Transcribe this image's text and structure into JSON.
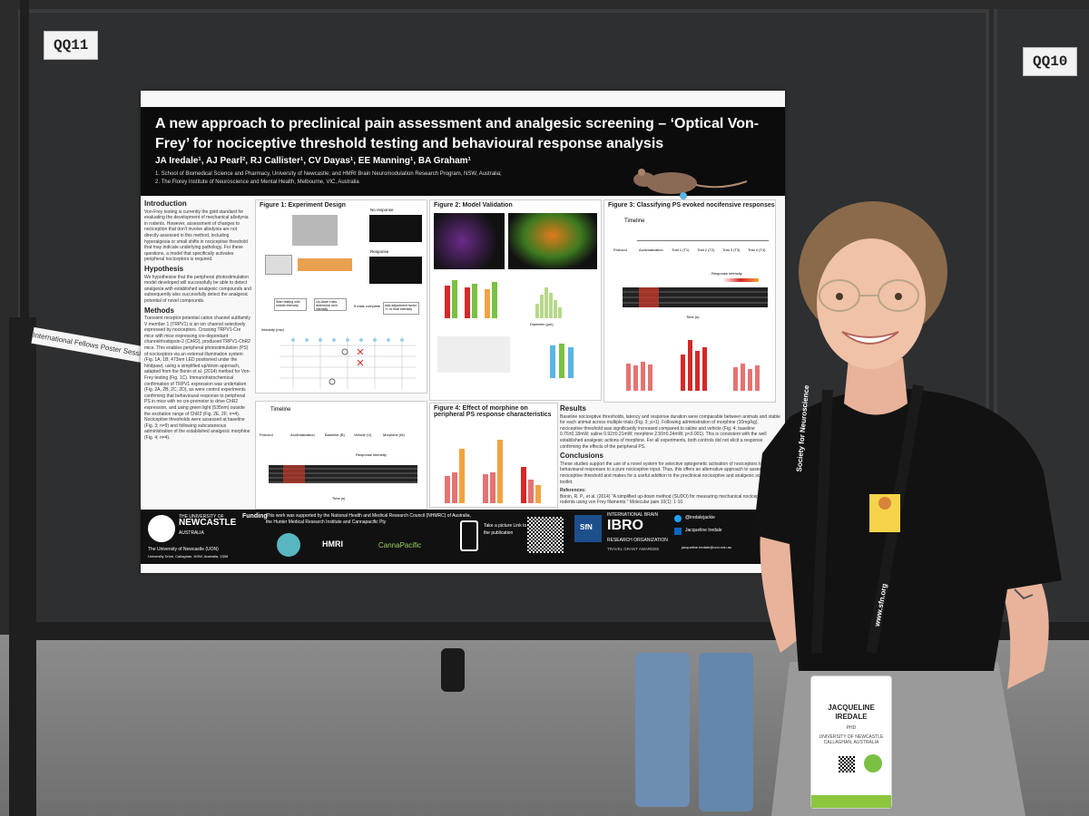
{
  "booth": {
    "left_tag": "QQ11",
    "right_tag": "QQ10",
    "strip_label": "International Fellows Poster Session"
  },
  "poster": {
    "title": "A new approach to preclinical pain assessment and analgesic screening – ‘Optical Von-Frey’ for nociceptive threshold testing and behavioural response analysis",
    "authors": "JA Iredale¹, AJ Pearl², RJ Callister¹, CV Dayas¹, EE Manning¹, BA Graham¹",
    "affiliation_1": "1. School of Biomedical Science and Pharmacy, University of Newcastle; and HMRI Brain Neuromodulation Research Program, NSW, Australia;",
    "affiliation_2": "2. The Florey Institute of Neuroscience and Mental Health, Melbourne, VIC, Australia",
    "sections": {
      "intro_h": "Introduction",
      "intro_text": "Von-Frey testing is currently the gold standard for evaluating the development of mechanical allodynia in rodents. However, assessment of changes to nociception that don't involve allodynia are not directly assessed in this method, including hyperalgesia or small shifts in nociceptive threshold that may indicate underlying pathology. For these questions, a model that specifically activates peripheral nociceptors is required.",
      "hyp_h": "Hypothesis",
      "hyp_text": "We hypothesise that the peripheral photostimulation model developed will successfully be able to detect analgesia with established analgesic compounds and subsequently also successfully detect the analgesic potential of novel compounds.",
      "methods_h": "Methods",
      "methods_text": "Transient receptor potential cation channel subfamily V member 1 (TRPV1) is an ion channel selectively expressed by nociceptors. Crossing TRPV1-Cre mice with mice expressing cre-dependant channelrhodopsin-2 (ChR2), produced TRPV1-ChR2 mice. This enables peripheral photostimulation (PS) of nociceptors via an external illumination system (Fig. 1A, 1B; 473nm LED positioned under the hindpaw), using a simplified up/down approach, adapted from the Bonin et al. (2014) method for Von-Frey testing (Fig. 1C). Immunohistochemical confirmation of TRPV1 expression was undertaken (Fig. 2A, 2B, 2C, 2D), as were control experiments confirming that behavioural response to peripheral PS in mice with no cre-promotor to drive ChR2 expression, and using green light (535nm) outside the excitation range of ChR2 (Fig. 2E, 2F; n=4). Nociceptive thresholds were assessed at baseline (Fig. 3; n=9) and following subcutaneous administration of the established analgesic morphine (Fig. 4; n=4).",
      "results_h": "Results",
      "results_text": "Baseline nociceptive thresholds, latency and response duration were comparable between animals and stable for each animal across multiple trials (Fig. 3; p>1). Following administration of morphine (10mg/kg), nociceptive threshold was significantly increased compared to saline and vehicle (Fig. 4; baseline 0.76±0.18mW; saline 0.92±0.21mW; morphine 2.50±0.24mW; p<0.001). This is consistent with the well established analgesic actions of morphine. For all experiments, both controls did not elicit a response confirming the effects of the peripheral PS.",
      "concl_h": "Conclusions",
      "concl_text": "These studies support the use of a novel system for selective optogenetic activation of nociceptors to monitor behavioural responses to a pure nociceptive input. Thus, this offers an alternative approach to assess nociceptive threshold and makes for a useful addition to the preclinical nociceptive and analgesic screening toolkit.",
      "refs_h": "References:",
      "refs_text": "Bonin, R. P., et al. (2014) \"A simplified up-down method (SUDO) for measuring mechanical nociception in rodents using von Frey filaments.\" Molecular pain 10(1): 1-10."
    },
    "figures": {
      "fig1": "Figure 1: Experiment Design",
      "fig2": "Figure 2: Model Validation",
      "fig3": "Figure 3: Classifying PS evoked nocifensive responses",
      "fig4": "Figure 4: Effect of morphine on peripheral PS response characteristics",
      "timeline": "Timeline",
      "protocol": "Protocol",
      "acclimatization": "Acclimatization",
      "trial1": "Trial 1 (T1)",
      "trial2": "Trial 2 (T2)",
      "trial3": "Trial 3 (T3)",
      "trial4": "Trial 4 (T4)",
      "baseline": "Baseline (B)",
      "vehicle": "Vehicle (V)",
      "morphine": "Morphine (M)",
      "response_intensity": "Response intensity",
      "time_s": "Time (s)",
      "intensity_mw": "Intensity (mw)",
      "no_response": "No response",
      "response": "Response",
      "diameter": "Diameter (µm)",
      "start_testing": "Start testing with middle intensity",
      "updown": "Up-down rules determine next intensity",
      "five_trials": "5 trials complete",
      "adjust": "Add adjustment factor +/- to final intensity"
    },
    "footer": {
      "uni_line1": "THE UNIVERSITY OF",
      "uni_line2": "NEWCASTLE",
      "uni_line3": "AUSTRALIA",
      "uni_line4": "The University of Newcastle (UON)",
      "uni_line5": "University Drive, Callaghan, NSW, Australia, 2308",
      "funding_h": "Funding",
      "funding_text": "This work was supported by the National Health and Medical Research Council (NHMRC) of Australia, the Hunter Medical Research Institute and Cannapacific Pty",
      "hmri": "HMRI",
      "canna": "CannaPacific",
      "photo_text": "Take a picture Link to the publication",
      "sfn": "SfN",
      "ibro_1": "INTERNATIONAL BRAIN",
      "ibro_2": "IBRO",
      "ibro_3": "RESEARCH ORGANIZATION",
      "ibro_4": "TRAVEL GRANT AWARDEE",
      "twitter": "@iredalejackie",
      "linkedin": "Jacqueline Iredale",
      "email": "jacqueline.iredale@uon.edu.au"
    }
  },
  "badge": {
    "name_1": "JACQUELINE",
    "name_2": "IREDALE",
    "role": "PHD",
    "org_1": "UNIVERSITY OF NEWCASTLE",
    "org_2": "CALLAGHAN, AUSTRALIA",
    "lanyard": "Society for Neuroscience",
    "lanyard_url": "www.sfn.org"
  },
  "colors": {
    "poster_header": "#0c0c0c",
    "accent_red": "#d62828",
    "accent_green": "#7ac143",
    "accent_orange": "#f2a341",
    "shirt": "#111111"
  }
}
